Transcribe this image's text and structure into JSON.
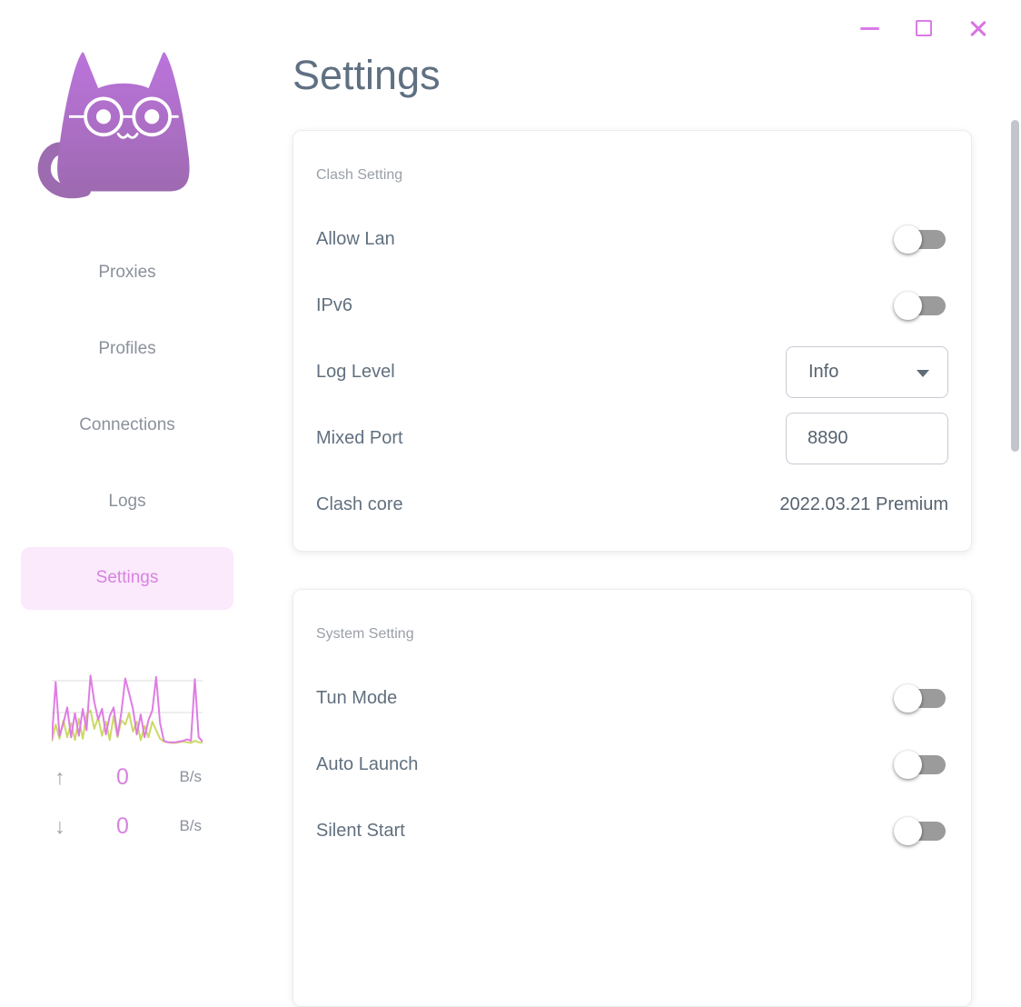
{
  "window": {
    "controls": [
      {
        "name": "minimize"
      },
      {
        "name": "maximize"
      },
      {
        "name": "close"
      }
    ]
  },
  "sidebar": {
    "logo": "cat-logo",
    "items": [
      {
        "label": "Proxies",
        "active": false
      },
      {
        "label": "Profiles",
        "active": false
      },
      {
        "label": "Connections",
        "active": false
      },
      {
        "label": "Logs",
        "active": false
      },
      {
        "label": "Settings",
        "active": true
      }
    ],
    "traffic": {
      "up": {
        "arrow": "↑",
        "value": "0",
        "unit": "B/s"
      },
      "down": {
        "arrow": "↓",
        "value": "0",
        "unit": "B/s"
      }
    }
  },
  "page": {
    "title": "Settings"
  },
  "cards": [
    {
      "title": "Clash Setting",
      "rows": [
        {
          "label": "Allow Lan",
          "type": "toggle",
          "value": false
        },
        {
          "label": "IPv6",
          "type": "toggle",
          "value": false
        },
        {
          "label": "Log Level",
          "type": "select",
          "value": "Info"
        },
        {
          "label": "Mixed Port",
          "type": "input",
          "value": "8890"
        },
        {
          "label": "Clash core",
          "type": "text",
          "value": "2022.03.21 Premium"
        }
      ]
    },
    {
      "title": "System Setting",
      "rows": [
        {
          "label": "Tun Mode",
          "type": "toggle",
          "value": false
        },
        {
          "label": "Auto Launch",
          "type": "toggle",
          "value": false
        },
        {
          "label": "Silent Start",
          "type": "toggle",
          "value": false
        }
      ]
    }
  ],
  "chart_data": {
    "type": "line",
    "title": "traffic-sparkline",
    "xlabel": "",
    "ylabel": "",
    "ylim": [
      0,
      100
    ],
    "grid": true,
    "legend_position": "none",
    "series": [
      {
        "name": "upload",
        "color": "#df7ce3",
        "values": [
          6,
          88,
          12,
          30,
          52,
          10,
          44,
          12,
          50,
          20,
          97,
          60,
          35,
          50,
          14,
          40,
          52,
          12,
          45,
          93,
          72,
          50,
          14,
          42,
          10,
          34,
          48,
          95,
          30,
          5,
          3,
          3,
          3,
          4,
          5,
          7,
          5,
          92,
          10,
          4
        ]
      },
      {
        "name": "download",
        "color": "#ccd964",
        "values": [
          4,
          28,
          8,
          34,
          10,
          30,
          6,
          36,
          8,
          42,
          48,
          22,
          38,
          12,
          32,
          6,
          40,
          10,
          34,
          28,
          44,
          18,
          32,
          6,
          26,
          10,
          32,
          20,
          8,
          4,
          3,
          2,
          2,
          3,
          4,
          3,
          2,
          5,
          3,
          2
        ]
      }
    ]
  },
  "colors": {
    "accent": "#d97ce8",
    "accent_text": "#d783e0",
    "active_pill_bg": "#fbe9fc",
    "title_text": "#5f7081",
    "label_text": "#61707f",
    "muted_text": "#9aa0a8",
    "nav_text": "#8b919b",
    "toggle_track": "#9b9b9b",
    "chart_up": "#df7ce3",
    "chart_down": "#ccd964",
    "cat_gradient_top": "#bd74de",
    "cat_gradient_bottom": "#9c69ae"
  }
}
